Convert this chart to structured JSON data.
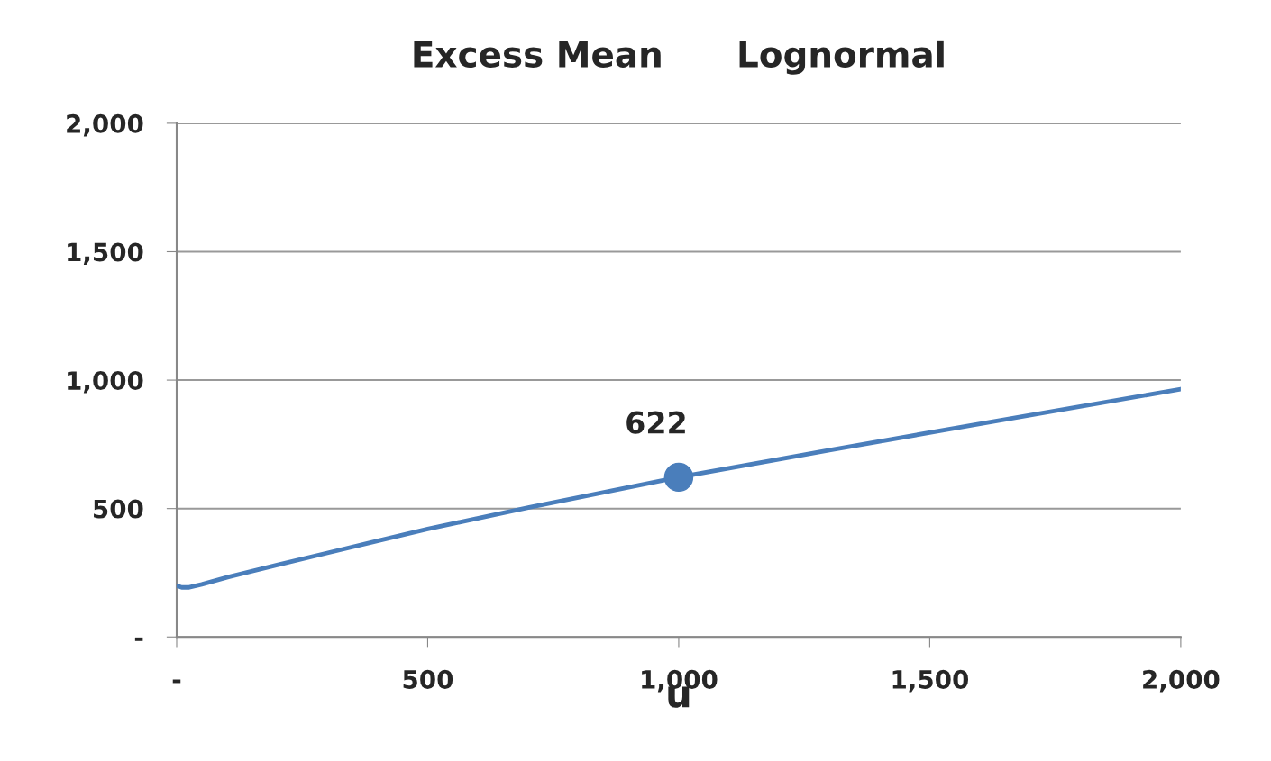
{
  "chart_data": {
    "type": "line",
    "title": "Excess Mean      Lognormal",
    "xlabel": "u",
    "xlim": [
      0,
      2000
    ],
    "xticks": [
      {
        "value": 0,
        "label": "-"
      },
      {
        "value": 500,
        "label": "500"
      },
      {
        "value": 1000,
        "label": "1,000"
      },
      {
        "value": 1500,
        "label": "1,500"
      },
      {
        "value": 2000,
        "label": "2,000"
      }
    ],
    "ylim": [
      0,
      2000
    ],
    "yticks": [
      {
        "value": 0,
        "label": "-"
      },
      {
        "value": 500,
        "label": "500"
      },
      {
        "value": 1000,
        "label": "1,000"
      },
      {
        "value": 1500,
        "label": "1,500"
      },
      {
        "value": 2000,
        "label": "2,000"
      }
    ],
    "grid": "y",
    "legend": false,
    "series": [
      {
        "color": "#4a7ebb",
        "x": [
          0,
          10,
          25,
          50,
          100,
          200,
          300,
          400,
          500,
          700,
          1000,
          1300,
          1600,
          2000
        ],
        "values": [
          200,
          193,
          193,
          205,
          232,
          280,
          327,
          374,
          420,
          504,
          622,
          727,
          830,
          965
        ]
      },
      {
        "type": "scatter",
        "color": "#4a7ebb",
        "marker": "circle",
        "x": [
          1000
        ],
        "values": [
          622
        ],
        "value_labels": [
          "622"
        ]
      }
    ]
  }
}
